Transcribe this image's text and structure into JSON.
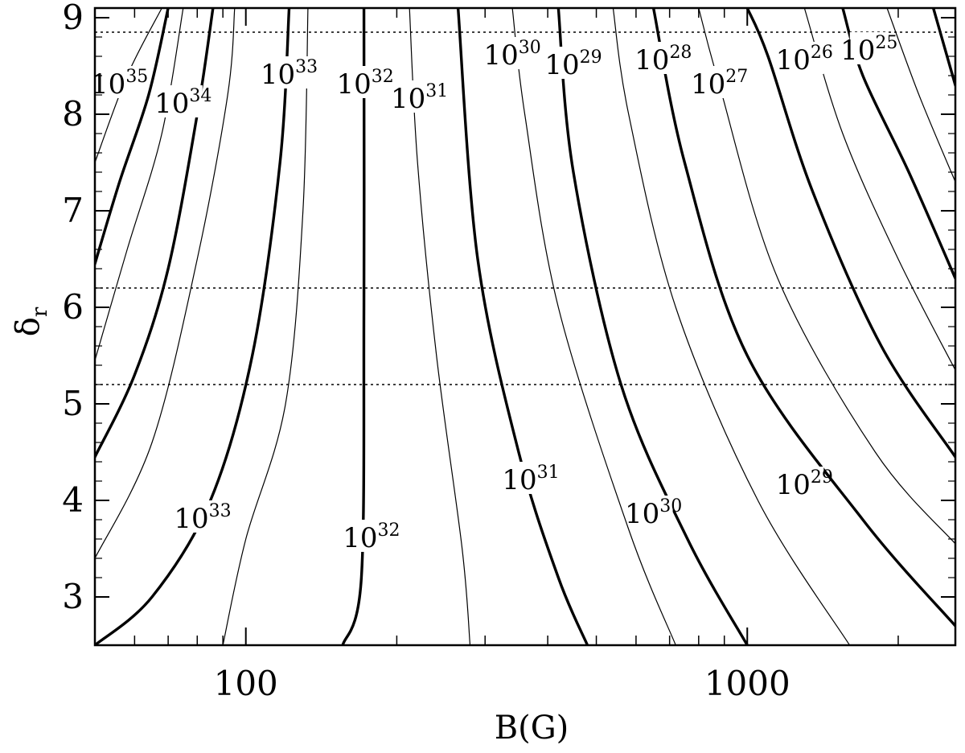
{
  "chart_data": {
    "type": "contour",
    "xlabel": "B(G)",
    "ylabel": "δ",
    "ylabel_sub": "r",
    "x_scale": "log",
    "xlim": [
      50,
      2600
    ],
    "ylim": [
      2.5,
      9.1
    ],
    "x_major_ticks": [
      100,
      1000
    ],
    "x_minor_ticks": [
      50,
      60,
      70,
      80,
      90,
      200,
      300,
      400,
      500,
      600,
      700,
      800,
      900,
      2000
    ],
    "y_ticks": [
      3,
      4,
      5,
      6,
      7,
      8,
      9
    ],
    "reference_lines_y": [
      8.85,
      6.2,
      5.2
    ],
    "contours": [
      {
        "weight": "thin",
        "points": [
          [
            50,
            7.5
          ],
          [
            58,
            8.4
          ],
          [
            68,
            9.1
          ]
        ]
      },
      {
        "weight": "thick",
        "points": [
          [
            50,
            6.45
          ],
          [
            56,
            7.3
          ],
          [
            64,
            8.2
          ],
          [
            70,
            9.1
          ]
        ]
      },
      {
        "weight": "thin",
        "points": [
          [
            50,
            5.45
          ],
          [
            58,
            6.6
          ],
          [
            68,
            7.8
          ],
          [
            75,
            9.1
          ]
        ]
      },
      {
        "weight": "thick",
        "points": [
          [
            50,
            4.45
          ],
          [
            60,
            5.3
          ],
          [
            70,
            6.4
          ],
          [
            80,
            8.0
          ],
          [
            86,
            9.1
          ]
        ]
      },
      {
        "weight": "thin",
        "points": [
          [
            50,
            3.4
          ],
          [
            65,
            4.6
          ],
          [
            80,
            6.5
          ],
          [
            92,
            8.2
          ],
          [
            95,
            9.1
          ]
        ]
      },
      {
        "weight": "thick",
        "points": [
          [
            50,
            2.5
          ],
          [
            65,
            3.0
          ],
          [
            85,
            4.0
          ],
          [
            103,
            5.5
          ],
          [
            117,
            7.5
          ],
          [
            122,
            9.1
          ]
        ]
      },
      {
        "weight": "thin",
        "points": [
          [
            90,
            2.5
          ],
          [
            100,
            3.6
          ],
          [
            120,
            5.0
          ],
          [
            130,
            7.0
          ],
          [
            133,
            9.1
          ]
        ]
      },
      {
        "weight": "thick",
        "points": [
          [
            156,
            2.5
          ],
          [
            170,
            3.2
          ],
          [
            172,
            6.0
          ],
          [
            172,
            9.1
          ]
        ]
      },
      {
        "weight": "thin",
        "points": [
          [
            280,
            2.5
          ],
          [
            270,
            3.5
          ],
          [
            240,
            5.5
          ],
          [
            220,
            7.5
          ],
          [
            212,
            9.1
          ]
        ]
      },
      {
        "weight": "thick",
        "points": [
          [
            480,
            2.5
          ],
          [
            420,
            3.2
          ],
          [
            350,
            4.5
          ],
          [
            290,
            6.5
          ],
          [
            265,
            9.1
          ]
        ]
      },
      {
        "weight": "thin",
        "points": [
          [
            720,
            2.5
          ],
          [
            580,
            3.7
          ],
          [
            420,
            6.0
          ],
          [
            360,
            8.0
          ],
          [
            340,
            9.1
          ]
        ]
      },
      {
        "weight": "thick",
        "points": [
          [
            1000,
            2.5
          ],
          [
            760,
            3.6
          ],
          [
            560,
            5.2
          ],
          [
            450,
            7.4
          ],
          [
            420,
            9.1
          ]
        ]
      },
      {
        "weight": "thin",
        "points": [
          [
            1600,
            2.5
          ],
          [
            1050,
            4.0
          ],
          [
            720,
            6.0
          ],
          [
            580,
            8.0
          ],
          [
            540,
            9.1
          ]
        ]
      },
      {
        "weight": "thick",
        "points": [
          [
            2600,
            2.7
          ],
          [
            1700,
            3.8
          ],
          [
            1000,
            5.5
          ],
          [
            750,
            7.5
          ],
          [
            650,
            9.1
          ]
        ]
      },
      {
        "weight": "thin",
        "points": [
          [
            2600,
            3.55
          ],
          [
            1800,
            4.5
          ],
          [
            1150,
            6.3
          ],
          [
            880,
            8.3
          ],
          [
            800,
            9.1
          ]
        ]
      },
      {
        "weight": "thick",
        "points": [
          [
            2600,
            4.45
          ],
          [
            1850,
            5.6
          ],
          [
            1350,
            7.2
          ],
          [
            1100,
            8.6
          ],
          [
            1000,
            9.1
          ]
        ]
      },
      {
        "weight": "thin",
        "points": [
          [
            2600,
            5.35
          ],
          [
            2000,
            6.5
          ],
          [
            1550,
            7.8
          ],
          [
            1300,
            9.1
          ]
        ]
      },
      {
        "weight": "thick",
        "points": [
          [
            2600,
            6.3
          ],
          [
            2100,
            7.4
          ],
          [
            1700,
            8.4
          ],
          [
            1550,
            9.1
          ]
        ]
      },
      {
        "weight": "thin",
        "points": [
          [
            2600,
            7.3
          ],
          [
            2200,
            8.2
          ],
          [
            1900,
            9.1
          ]
        ]
      },
      {
        "weight": "thick",
        "points": [
          [
            2600,
            8.3
          ],
          [
            2350,
            9.1
          ]
        ]
      }
    ],
    "labels": [
      {
        "text": "10",
        "exp": "35",
        "x": 56,
        "y": 8.3
      },
      {
        "text": "10",
        "exp": "34",
        "x": 75,
        "y": 8.1
      },
      {
        "text": "10",
        "exp": "33",
        "x": 122,
        "y": 8.4
      },
      {
        "text": "10",
        "exp": "32",
        "x": 173,
        "y": 8.3
      },
      {
        "text": "10",
        "exp": "31",
        "x": 222,
        "y": 8.15
      },
      {
        "text": "10",
        "exp": "30",
        "x": 340,
        "y": 8.6
      },
      {
        "text": "10",
        "exp": "29",
        "x": 450,
        "y": 8.5
      },
      {
        "text": "10",
        "exp": "28",
        "x": 680,
        "y": 8.55
      },
      {
        "text": "10",
        "exp": "27",
        "x": 880,
        "y": 8.3
      },
      {
        "text": "10",
        "exp": "26",
        "x": 1300,
        "y": 8.55
      },
      {
        "text": "10",
        "exp": "25",
        "x": 1750,
        "y": 8.65
      },
      {
        "text": "10",
        "exp": "33",
        "x": 82,
        "y": 3.8
      },
      {
        "text": "10",
        "exp": "32",
        "x": 178,
        "y": 3.6
      },
      {
        "text": "10",
        "exp": "31",
        "x": 370,
        "y": 4.2
      },
      {
        "text": "10",
        "exp": "30",
        "x": 650,
        "y": 3.85
      },
      {
        "text": "10",
        "exp": "29",
        "x": 1300,
        "y": 4.15
      }
    ]
  }
}
